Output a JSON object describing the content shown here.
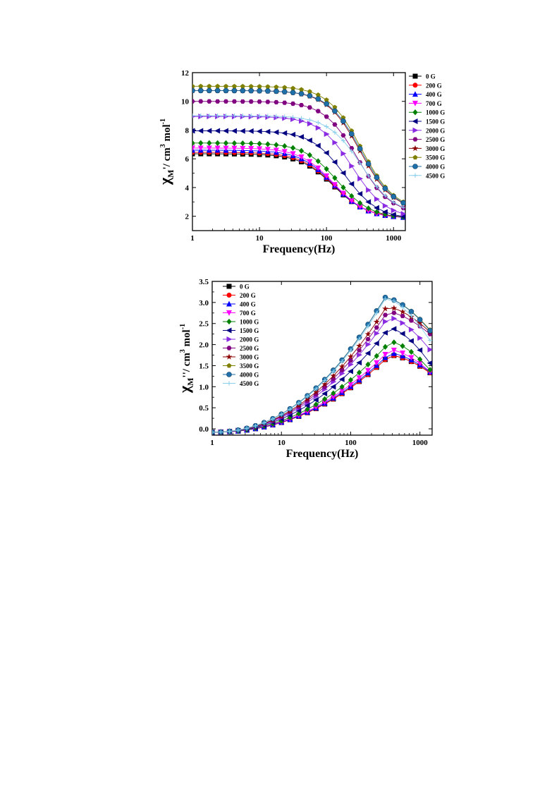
{
  "chart_data": [
    {
      "type": "line",
      "x_scale": "log",
      "xlabel": "Frequency(Hz)",
      "ylabel": {
        "symbol": "χ",
        "sub": "M",
        "rest": "'/ cm",
        "sup1": "3",
        "mid": " mol",
        "sup2": "-1"
      },
      "xlim": [
        1,
        1500
      ],
      "ylim": [
        1,
        12
      ],
      "x_ticks": [
        1,
        10,
        100,
        1000
      ],
      "x_tick_labels": [
        "1",
        "10",
        "100",
        "1000"
      ],
      "y_ticks": [
        2,
        4,
        6,
        8,
        10,
        12
      ],
      "y_tick_labels": [
        "2",
        "4",
        "6",
        "8",
        "10",
        "12"
      ],
      "legend_position": "right-outside",
      "x": [
        1,
        1.33,
        1.78,
        2.37,
        3.16,
        4.22,
        5.62,
        7.5,
        10,
        13.3,
        17.8,
        23.7,
        31.6,
        42.2,
        56.2,
        75,
        100,
        133,
        178,
        237,
        316,
        422,
        562,
        750,
        1000,
        1400
      ],
      "series": [
        {
          "name": "0 G",
          "color": "#000000",
          "marker": "square",
          "low": 1.9,
          "high": 6.35,
          "tau": 0.00125
        },
        {
          "name": "200 G",
          "color": "#ff0000",
          "marker": "circle",
          "low": 1.9,
          "high": 6.45,
          "tau": 0.00125
        },
        {
          "name": "400 G",
          "color": "#0000ff",
          "marker": "triangle-up",
          "low": 1.85,
          "high": 6.6,
          "tau": 0.00125
        },
        {
          "name": "700 G",
          "color": "#ff00ff",
          "marker": "triangle-down",
          "low": 1.85,
          "high": 6.75,
          "tau": 0.00125
        },
        {
          "name": "1000 G",
          "color": "#008000",
          "marker": "diamond",
          "low": 1.85,
          "high": 7.1,
          "tau": 0.0011
        },
        {
          "name": "1500 G",
          "color": "#000080",
          "marker": "triangle-left",
          "low": 1.8,
          "high": 7.95,
          "tau": 0.00085
        },
        {
          "name": "2000 G",
          "color": "#8a2be2",
          "marker": "triangle-right",
          "low": 1.85,
          "high": 8.95,
          "tau": 0.00065
        },
        {
          "name": "2500 G",
          "color": "#800080",
          "marker": "hexagon",
          "low": 2.1,
          "high": 10.0,
          "tau": 0.00055
        },
        {
          "name": "3000 G",
          "color": "#8b0000",
          "marker": "star",
          "low": 2.3,
          "high": 10.75,
          "tau": 0.0005
        },
        {
          "name": "3500 G",
          "color": "#808000",
          "marker": "pentagon",
          "low": 2.35,
          "high": 11.05,
          "tau": 0.00048
        },
        {
          "name": "4000 G",
          "color": "#1f6fa8",
          "marker": "circle-ball",
          "low": 2.3,
          "high": 10.75,
          "tau": 0.00048
        },
        {
          "name": "4500 G",
          "color": "#87ceeb",
          "marker": "plus",
          "low": 2.1,
          "high": 9.0,
          "tau": 0.00048
        }
      ]
    },
    {
      "type": "line",
      "x_scale": "log",
      "xlabel": "Frequency(Hz)",
      "ylabel": {
        "symbol": "χ",
        "sub": "M",
        "rest": "''/ cm",
        "sup1": "3",
        "mid": " mol",
        "sup2": "-1"
      },
      "xlim": [
        1,
        1500
      ],
      "ylim": [
        -0.15,
        3.5
      ],
      "x_ticks": [
        1,
        10,
        100,
        1000
      ],
      "x_tick_labels": [
        "1",
        "10",
        "100",
        "1000"
      ],
      "y_ticks": [
        0.0,
        0.5,
        1.0,
        1.5,
        2.0,
        2.5,
        3.0,
        3.5
      ],
      "y_tick_labels": [
        "0.0",
        "0.5",
        "1.0",
        "1.5",
        "2.0",
        "2.5",
        "3.0",
        "3.5"
      ],
      "legend_position": "top-left",
      "x": [
        1,
        1.33,
        1.78,
        2.37,
        3.16,
        4.22,
        5.62,
        7.5,
        10,
        13.3,
        17.8,
        23.7,
        31.6,
        42.2,
        56.2,
        75,
        100,
        133,
        178,
        237,
        316,
        422,
        562,
        750,
        1000,
        1400
      ],
      "series": [
        {
          "name": "0 G",
          "color": "#000000",
          "marker": "square",
          "peak": 1.75,
          "peak_x": 370,
          "end": 1.33
        },
        {
          "name": "200 G",
          "color": "#ff0000",
          "marker": "circle",
          "peak": 1.75,
          "peak_x": 370,
          "end": 1.33
        },
        {
          "name": "400 G",
          "color": "#0000ff",
          "marker": "triangle-up",
          "peak": 1.8,
          "peak_x": 370,
          "end": 1.35
        },
        {
          "name": "700 G",
          "color": "#ff00ff",
          "marker": "triangle-down",
          "peak": 1.88,
          "peak_x": 370,
          "end": 1.36
        },
        {
          "name": "1000 G",
          "color": "#008000",
          "marker": "diamond",
          "peak": 2.07,
          "peak_x": 370,
          "end": 1.4
        },
        {
          "name": "1500 G",
          "color": "#000080",
          "marker": "triangle-left",
          "peak": 2.4,
          "peak_x": 360,
          "end": 1.56
        },
        {
          "name": "2000 G",
          "color": "#8a2be2",
          "marker": "triangle-right",
          "peak": 2.65,
          "peak_x": 350,
          "end": 1.88
        },
        {
          "name": "2500 G",
          "color": "#800080",
          "marker": "hexagon",
          "peak": 2.78,
          "peak_x": 340,
          "end": 2.25
        },
        {
          "name": "3000 G",
          "color": "#8b0000",
          "marker": "star",
          "peak": 2.9,
          "peak_x": 330,
          "end": 2.3
        },
        {
          "name": "3500 G",
          "color": "#808000",
          "marker": "pentagon",
          "peak": 3.12,
          "peak_x": 310,
          "end": 2.35
        },
        {
          "name": "4000 G",
          "color": "#1f6fa8",
          "marker": "circle-ball",
          "peak": 3.12,
          "peak_x": 310,
          "end": 2.33
        },
        {
          "name": "4500 G",
          "color": "#87ceeb",
          "marker": "plus",
          "peak": 3.1,
          "peak_x": 320,
          "end": 2.1
        }
      ]
    }
  ]
}
